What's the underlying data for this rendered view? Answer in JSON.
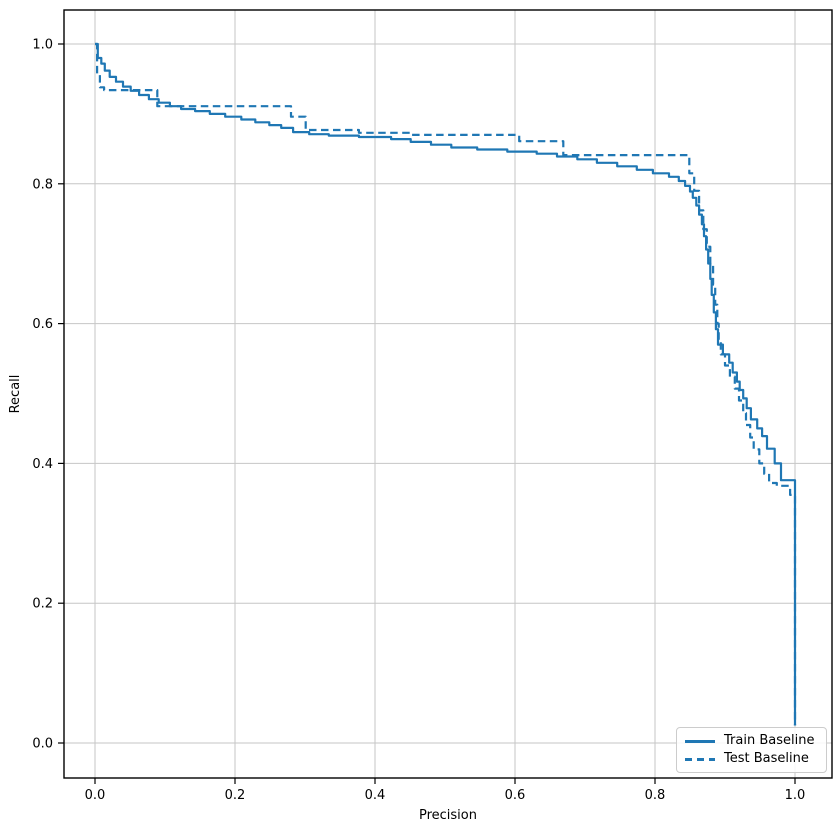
{
  "chart_data": {
    "type": "line",
    "title": "",
    "xlabel": "Precision",
    "ylabel": "Recall",
    "xlim": [
      -0.045,
      1.053
    ],
    "ylim": [
      -0.052,
      1.049
    ],
    "x_ticks": [
      0.0,
      0.2,
      0.4,
      0.6,
      0.8,
      1.0
    ],
    "y_ticks": [
      0.0,
      0.2,
      0.4,
      0.6,
      0.8,
      1.0
    ],
    "grid": true,
    "grid_color": "#c6c6c6",
    "accent_color": "#1f77b4",
    "legend_position": "lower right",
    "series": [
      {
        "name": "Train Baseline",
        "style": "solid",
        "color": "#1f77b4",
        "points": [
          [
            0.0,
            1.0
          ],
          [
            0.004,
            1.0
          ],
          [
            0.004,
            0.98
          ],
          [
            0.009,
            0.98
          ],
          [
            0.009,
            0.972
          ],
          [
            0.014,
            0.972
          ],
          [
            0.014,
            0.962
          ],
          [
            0.021,
            0.962
          ],
          [
            0.021,
            0.953
          ],
          [
            0.03,
            0.953
          ],
          [
            0.03,
            0.946
          ],
          [
            0.04,
            0.946
          ],
          [
            0.04,
            0.939
          ],
          [
            0.051,
            0.939
          ],
          [
            0.051,
            0.933
          ],
          [
            0.063,
            0.933
          ],
          [
            0.063,
            0.927
          ],
          [
            0.077,
            0.927
          ],
          [
            0.077,
            0.921
          ],
          [
            0.091,
            0.921
          ],
          [
            0.091,
            0.916
          ],
          [
            0.107,
            0.916
          ],
          [
            0.107,
            0.911
          ],
          [
            0.123,
            0.911
          ],
          [
            0.123,
            0.907
          ],
          [
            0.143,
            0.907
          ],
          [
            0.143,
            0.904
          ],
          [
            0.164,
            0.904
          ],
          [
            0.164,
            0.9
          ],
          [
            0.186,
            0.9
          ],
          [
            0.186,
            0.896
          ],
          [
            0.209,
            0.896
          ],
          [
            0.209,
            0.892
          ],
          [
            0.229,
            0.892
          ],
          [
            0.229,
            0.888
          ],
          [
            0.249,
            0.888
          ],
          [
            0.249,
            0.884
          ],
          [
            0.266,
            0.884
          ],
          [
            0.266,
            0.88
          ],
          [
            0.283,
            0.88
          ],
          [
            0.283,
            0.874
          ],
          [
            0.306,
            0.874
          ],
          [
            0.306,
            0.871
          ],
          [
            0.334,
            0.871
          ],
          [
            0.334,
            0.869
          ],
          [
            0.377,
            0.869
          ],
          [
            0.377,
            0.867
          ],
          [
            0.423,
            0.867
          ],
          [
            0.423,
            0.864
          ],
          [
            0.451,
            0.864
          ],
          [
            0.451,
            0.86
          ],
          [
            0.48,
            0.86
          ],
          [
            0.48,
            0.856
          ],
          [
            0.509,
            0.856
          ],
          [
            0.509,
            0.852
          ],
          [
            0.546,
            0.852
          ],
          [
            0.546,
            0.849
          ],
          [
            0.589,
            0.849
          ],
          [
            0.589,
            0.846
          ],
          [
            0.631,
            0.846
          ],
          [
            0.631,
            0.843
          ],
          [
            0.66,
            0.843
          ],
          [
            0.66,
            0.839
          ],
          [
            0.689,
            0.839
          ],
          [
            0.689,
            0.835
          ],
          [
            0.717,
            0.835
          ],
          [
            0.717,
            0.83
          ],
          [
            0.746,
            0.83
          ],
          [
            0.746,
            0.825
          ],
          [
            0.774,
            0.825
          ],
          [
            0.774,
            0.82
          ],
          [
            0.797,
            0.82
          ],
          [
            0.797,
            0.815
          ],
          [
            0.82,
            0.815
          ],
          [
            0.82,
            0.81
          ],
          [
            0.834,
            0.81
          ],
          [
            0.834,
            0.804
          ],
          [
            0.843,
            0.804
          ],
          [
            0.843,
            0.797
          ],
          [
            0.85,
            0.797
          ],
          [
            0.85,
            0.789
          ],
          [
            0.854,
            0.789
          ],
          [
            0.854,
            0.78
          ],
          [
            0.859,
            0.78
          ],
          [
            0.859,
            0.769
          ],
          [
            0.863,
            0.769
          ],
          [
            0.863,
            0.756
          ],
          [
            0.867,
            0.756
          ],
          [
            0.867,
            0.742
          ],
          [
            0.87,
            0.742
          ],
          [
            0.87,
            0.725
          ],
          [
            0.873,
            0.725
          ],
          [
            0.873,
            0.706
          ],
          [
            0.876,
            0.706
          ],
          [
            0.876,
            0.686
          ],
          [
            0.879,
            0.686
          ],
          [
            0.879,
            0.664
          ],
          [
            0.881,
            0.664
          ],
          [
            0.881,
            0.641
          ],
          [
            0.884,
            0.641
          ],
          [
            0.884,
            0.616
          ],
          [
            0.887,
            0.616
          ],
          [
            0.887,
            0.592
          ],
          [
            0.89,
            0.592
          ],
          [
            0.89,
            0.57
          ],
          [
            0.897,
            0.57
          ],
          [
            0.897,
            0.556
          ],
          [
            0.906,
            0.556
          ],
          [
            0.906,
            0.544
          ],
          [
            0.911,
            0.544
          ],
          [
            0.911,
            0.53
          ],
          [
            0.917,
            0.53
          ],
          [
            0.917,
            0.517
          ],
          [
            0.921,
            0.517
          ],
          [
            0.921,
            0.505
          ],
          [
            0.926,
            0.505
          ],
          [
            0.926,
            0.493
          ],
          [
            0.931,
            0.493
          ],
          [
            0.931,
            0.479
          ],
          [
            0.937,
            0.479
          ],
          [
            0.937,
            0.463
          ],
          [
            0.946,
            0.463
          ],
          [
            0.946,
            0.45
          ],
          [
            0.953,
            0.45
          ],
          [
            0.953,
            0.439
          ],
          [
            0.96,
            0.439
          ],
          [
            0.96,
            0.421
          ],
          [
            0.971,
            0.421
          ],
          [
            0.971,
            0.4
          ],
          [
            0.98,
            0.4
          ],
          [
            0.98,
            0.376
          ],
          [
            1.0,
            0.376
          ],
          [
            1.0,
            0.025
          ]
        ]
      },
      {
        "name": "Test Baseline",
        "style": "dashed",
        "color": "#1f77b4",
        "points": [
          [
            0.0,
            1.0
          ],
          [
            0.003,
            1.0
          ],
          [
            0.003,
            0.958
          ],
          [
            0.007,
            0.958
          ],
          [
            0.007,
            0.938
          ],
          [
            0.013,
            0.938
          ],
          [
            0.013,
            0.934
          ],
          [
            0.089,
            0.934
          ],
          [
            0.089,
            0.911
          ],
          [
            0.28,
            0.911
          ],
          [
            0.28,
            0.896
          ],
          [
            0.301,
            0.896
          ],
          [
            0.301,
            0.877
          ],
          [
            0.377,
            0.877
          ],
          [
            0.377,
            0.873
          ],
          [
            0.451,
            0.873
          ],
          [
            0.451,
            0.87
          ],
          [
            0.606,
            0.87
          ],
          [
            0.606,
            0.861
          ],
          [
            0.669,
            0.861
          ],
          [
            0.669,
            0.841
          ],
          [
            0.849,
            0.841
          ],
          [
            0.849,
            0.815
          ],
          [
            0.856,
            0.815
          ],
          [
            0.856,
            0.79
          ],
          [
            0.863,
            0.79
          ],
          [
            0.863,
            0.762
          ],
          [
            0.869,
            0.762
          ],
          [
            0.869,
            0.735
          ],
          [
            0.874,
            0.735
          ],
          [
            0.874,
            0.71
          ],
          [
            0.879,
            0.71
          ],
          [
            0.879,
            0.685
          ],
          [
            0.883,
            0.685
          ],
          [
            0.883,
            0.656
          ],
          [
            0.886,
            0.656
          ],
          [
            0.886,
            0.627
          ],
          [
            0.889,
            0.627
          ],
          [
            0.889,
            0.6
          ],
          [
            0.891,
            0.6
          ],
          [
            0.891,
            0.575
          ],
          [
            0.894,
            0.575
          ],
          [
            0.894,
            0.556
          ],
          [
            0.9,
            0.556
          ],
          [
            0.9,
            0.54
          ],
          [
            0.907,
            0.54
          ],
          [
            0.907,
            0.524
          ],
          [
            0.914,
            0.524
          ],
          [
            0.914,
            0.507
          ],
          [
            0.92,
            0.507
          ],
          [
            0.92,
            0.49
          ],
          [
            0.926,
            0.49
          ],
          [
            0.926,
            0.472
          ],
          [
            0.93,
            0.472
          ],
          [
            0.93,
            0.455
          ],
          [
            0.936,
            0.455
          ],
          [
            0.936,
            0.437
          ],
          [
            0.941,
            0.437
          ],
          [
            0.941,
            0.42
          ],
          [
            0.949,
            0.42
          ],
          [
            0.949,
            0.4
          ],
          [
            0.956,
            0.4
          ],
          [
            0.956,
            0.385
          ],
          [
            0.963,
            0.385
          ],
          [
            0.963,
            0.372
          ],
          [
            0.974,
            0.372
          ],
          [
            0.974,
            0.368
          ],
          [
            0.993,
            0.368
          ],
          [
            0.993,
            0.355
          ],
          [
            1.0,
            0.355
          ],
          [
            1.0,
            0.025
          ]
        ]
      }
    ]
  }
}
